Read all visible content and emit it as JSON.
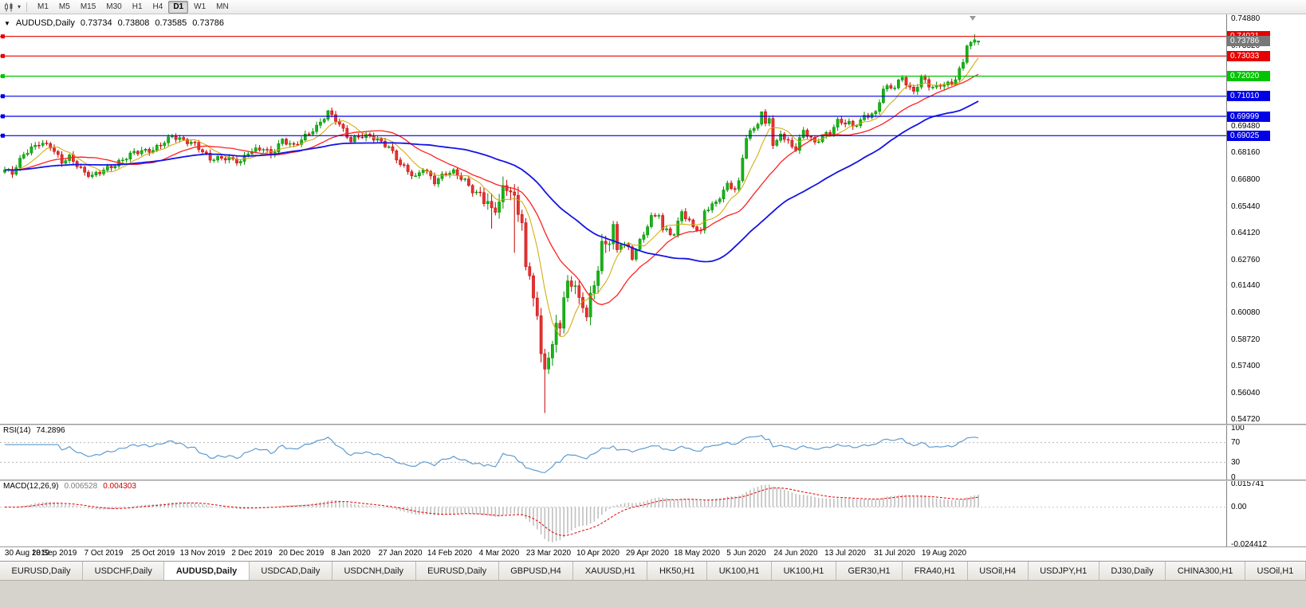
{
  "toolbar": {
    "timeframes": [
      "M1",
      "M5",
      "M15",
      "M30",
      "H1",
      "H4",
      "D1",
      "W1",
      "MN"
    ],
    "active_timeframe": "D1"
  },
  "chart": {
    "title_symbol": "AUDUSD,Daily",
    "open": "0.73734",
    "high": "0.73808",
    "low": "0.73585",
    "close": "0.73786",
    "price_scale": {
      "ticks": [
        "0.74880",
        "0.73520",
        "0.69480",
        "0.68160",
        "0.66800",
        "0.65440",
        "0.64120",
        "0.62760",
        "0.61440",
        "0.60080",
        "0.58720",
        "0.57400",
        "0.56040",
        "0.54720"
      ],
      "boxes": [
        {
          "label": "0.74021",
          "color": "#e60000"
        },
        {
          "label": "0.73786",
          "color": "#787878"
        },
        {
          "label": "0.73033",
          "color": "#e60000"
        },
        {
          "label": "0.72020",
          "color": "#00c400"
        },
        {
          "label": "0.71010",
          "color": "#0000e6"
        },
        {
          "label": "0.69999",
          "color": "#0000e6"
        },
        {
          "label": "0.69025",
          "color": "#0000e6"
        }
      ]
    }
  },
  "chart_data": {
    "type": "candlestick",
    "symbol": "AUDUSD",
    "timeframe": "Daily",
    "bars": 257,
    "y_range": [
      0.5452,
      0.7505
    ],
    "current_bar": {
      "open": 0.73734,
      "high": 0.73808,
      "low": 0.73585,
      "close": 0.73786
    },
    "close_keyframes": [
      [
        0,
        0.673
      ],
      [
        2,
        0.6715
      ],
      [
        5,
        0.681
      ],
      [
        9,
        0.6865
      ],
      [
        12,
        0.685
      ],
      [
        15,
        0.677
      ],
      [
        17,
        0.6795
      ],
      [
        21,
        0.6715
      ],
      [
        23,
        0.67
      ],
      [
        26,
        0.673
      ],
      [
        29,
        0.6755
      ],
      [
        34,
        0.682
      ],
      [
        39,
        0.683
      ],
      [
        44,
        0.69
      ],
      [
        46,
        0.6885
      ],
      [
        50,
        0.686
      ],
      [
        54,
        0.6785
      ],
      [
        58,
        0.679
      ],
      [
        62,
        0.677
      ],
      [
        64,
        0.682
      ],
      [
        68,
        0.684
      ],
      [
        70,
        0.6805
      ],
      [
        73,
        0.688
      ],
      [
        76,
        0.685
      ],
      [
        79,
        0.69
      ],
      [
        82,
        0.6945
      ],
      [
        85,
        0.7021
      ],
      [
        87,
        0.6985
      ],
      [
        91,
        0.6875
      ],
      [
        93,
        0.69
      ],
      [
        96,
        0.69
      ],
      [
        98,
        0.688
      ],
      [
        101,
        0.6845
      ],
      [
        104,
        0.676
      ],
      [
        108,
        0.669
      ],
      [
        110,
        0.674
      ],
      [
        113,
        0.667
      ],
      [
        116,
        0.6715
      ],
      [
        118,
        0.672
      ],
      [
        121,
        0.6675
      ],
      [
        123,
        0.6625
      ],
      [
        125,
        0.66
      ],
      [
        127,
        0.657
      ],
      [
        128,
        0.6515
      ],
      [
        129,
        0.6535
      ],
      [
        131,
        0.6625
      ],
      [
        133,
        0.664
      ],
      [
        134,
        0.658
      ],
      [
        135,
        0.65
      ],
      [
        136,
        0.649
      ],
      [
        137,
        0.623
      ],
      [
        138,
        0.618
      ],
      [
        139,
        0.611
      ],
      [
        140,
        0.5995
      ],
      [
        141,
        0.578
      ],
      [
        142,
        0.5745
      ],
      [
        143,
        0.5795
      ],
      [
        144,
        0.5825
      ],
      [
        145,
        0.5965
      ],
      [
        146,
        0.5955
      ],
      [
        147,
        0.6065
      ],
      [
        148,
        0.6165
      ],
      [
        149,
        0.617
      ],
      [
        150,
        0.6135
      ],
      [
        151,
        0.607
      ],
      [
        152,
        0.606
      ],
      [
        153,
        0.599
      ],
      [
        154,
        0.6085
      ],
      [
        155,
        0.6165
      ],
      [
        156,
        0.6235
      ],
      [
        157,
        0.6345
      ],
      [
        159,
        0.638
      ],
      [
        160,
        0.6435
      ],
      [
        161,
        0.6325
      ],
      [
        162,
        0.6365
      ],
      [
        164,
        0.6335
      ],
      [
        165,
        0.629
      ],
      [
        167,
        0.637
      ],
      [
        170,
        0.649
      ],
      [
        172,
        0.651
      ],
      [
        173,
        0.642
      ],
      [
        174,
        0.643
      ],
      [
        176,
        0.64
      ],
      [
        178,
        0.653
      ],
      [
        179,
        0.6485
      ],
      [
        181,
        0.645
      ],
      [
        183,
        0.6415
      ],
      [
        184,
        0.6525
      ],
      [
        187,
        0.6565
      ],
      [
        190,
        0.6655
      ],
      [
        192,
        0.6635
      ],
      [
        193,
        0.6665
      ],
      [
        194,
        0.6795
      ],
      [
        195,
        0.6895
      ],
      [
        197,
        0.694
      ],
      [
        198,
        0.697
      ],
      [
        199,
        0.7015
      ],
      [
        200,
        0.696
      ],
      [
        201,
        0.7
      ],
      [
        202,
        0.685
      ],
      [
        203,
        0.687
      ],
      [
        204,
        0.692
      ],
      [
        205,
        0.6885
      ],
      [
        208,
        0.6835
      ],
      [
        210,
        0.693
      ],
      [
        213,
        0.6865
      ],
      [
        215,
        0.69
      ],
      [
        217,
        0.692
      ],
      [
        219,
        0.6975
      ],
      [
        222,
        0.6965
      ],
      [
        223,
        0.695
      ],
      [
        225,
        0.6975
      ],
      [
        226,
        0.7
      ],
      [
        229,
        0.7015
      ],
      [
        231,
        0.714
      ],
      [
        234,
        0.715
      ],
      [
        236,
        0.7195
      ],
      [
        238,
        0.714
      ],
      [
        239,
        0.712
      ],
      [
        241,
        0.7195
      ],
      [
        243,
        0.7155
      ],
      [
        245,
        0.7145
      ],
      [
        247,
        0.7165
      ],
      [
        249,
        0.716
      ],
      [
        250,
        0.7195
      ],
      [
        251,
        0.7235
      ],
      [
        252,
        0.7265
      ],
      [
        253,
        0.7365
      ],
      [
        254,
        0.7371
      ],
      [
        255,
        0.7375
      ],
      [
        256,
        0.73786
      ]
    ],
    "extra_wicks": {
      "85": {
        "high": 0.7032
      },
      "128": {
        "low": 0.6434
      },
      "134": {
        "low": 0.6313
      },
      "142": {
        "low": 0.5506
      },
      "199": {
        "high": 0.7021
      },
      "255": {
        "high": 0.7413
      }
    },
    "last_candle": {
      "open": 0.73734,
      "high": 0.73808,
      "low": 0.73585,
      "close": 0.73786
    },
    "up_color": "#008f00",
    "up_fill": "#19b219",
    "down_color": "#c40000",
    "down_fill": "#e43434",
    "hlines": [
      {
        "price": 0.74021,
        "color": "#e60000"
      },
      {
        "price": 0.73033,
        "color": "#e60000"
      },
      {
        "price": 0.7202,
        "color": "#00c400"
      },
      {
        "price": 0.7101,
        "color": "#0000e6"
      },
      {
        "price": 0.69999,
        "color": "#0000e6"
      },
      {
        "price": 0.69025,
        "color": "#0000e6"
      }
    ],
    "moving_averages": [
      {
        "period": 8,
        "color": "#cfa600",
        "width": 1
      },
      {
        "period": 21,
        "color": "#ff2020",
        "width": 1.3
      },
      {
        "period": 50,
        "color": "#1414e6",
        "width": 1.8
      }
    ],
    "x_labels": [
      "30 Aug 2019",
      "18 Sep 2019",
      "7 Oct 2019",
      "25 Oct 2019",
      "13 Nov 2019",
      "2 Dec 2019",
      "20 Dec 2019",
      "8 Jan 2020",
      "27 Jan 2020",
      "14 Feb 2020",
      "4 Mar 2020",
      "23 Mar 2020",
      "10 Apr 2020",
      "29 Apr 2020",
      "18 May 2020",
      "5 Jun 2020",
      "24 Jun 2020",
      "13 Jul 2020",
      "31 Jul 2020",
      "19 Aug 2020"
    ],
    "label_every_bars": 13,
    "rsi": {
      "label": "RSI(14)",
      "value": "74.2896",
      "period": 14,
      "color": "#5f9bd0",
      "levels": [
        30,
        70
      ],
      "scale_labels": [
        "100",
        "70",
        "30",
        "0"
      ]
    },
    "macd": {
      "label": "MACD(12,26,9)",
      "main_value": "0.006528",
      "signal_value": "0.004303",
      "fast": 12,
      "slow": 26,
      "signal": 9,
      "histogram_color": "#c0c0c0",
      "signal_color": "#e00000",
      "scale_labels": [
        "0.015741",
        "0.00",
        "-0.024412"
      ]
    }
  },
  "tabs": {
    "active_index": 2,
    "items": [
      "EURUSD,Daily",
      "USDCHF,Daily",
      "AUDUSD,Daily",
      "USDCAD,Daily",
      "USDCNH,Daily",
      "EURUSD,Daily",
      "GBPUSD,H4",
      "XAUUSD,H1",
      "HK50,H1",
      "UK100,H1",
      "UK100,H1",
      "GER30,H1",
      "FRA40,H1",
      "USOil,H4",
      "USDJPY,H1",
      "DJ30,Daily",
      "CHINA300,H1",
      "USOil,H1"
    ]
  }
}
